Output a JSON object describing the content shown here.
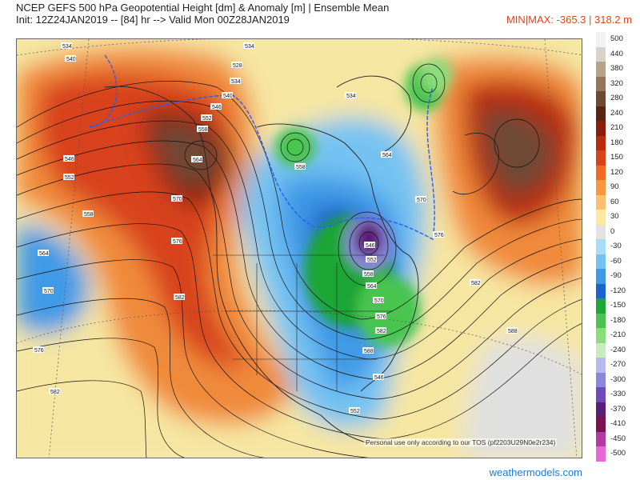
{
  "header": {
    "title": "NCEP GEFS 500 hPa Geopotential Height [dm] & Anomaly [m] | Ensemble Mean",
    "init": "Init: 12Z24JAN2019 -- [84] hr --> Valid Mon 00Z28JAN2019",
    "minmax": "MIN|MAX: -365.3 | 318.2 m"
  },
  "legend": {
    "entries": [
      {
        "label": "500",
        "color": "#f2f2f2"
      },
      {
        "label": "440",
        "color": "#d9d3c9"
      },
      {
        "label": "380",
        "color": "#b8a48c"
      },
      {
        "label": "320",
        "color": "#96765a"
      },
      {
        "label": "280",
        "color": "#6e4a36"
      },
      {
        "label": "240",
        "color": "#5a2414"
      },
      {
        "label": "210",
        "color": "#8a1d0b"
      },
      {
        "label": "180",
        "color": "#b92a0e"
      },
      {
        "label": "150",
        "color": "#d8431a"
      },
      {
        "label": "120",
        "color": "#ef6a26"
      },
      {
        "label": "90",
        "color": "#f79740"
      },
      {
        "label": "60",
        "color": "#fcc070"
      },
      {
        "label": "30",
        "color": "#fde8a0"
      },
      {
        "label": "0",
        "color": "#e3e3e3"
      },
      {
        "label": "-30",
        "color": "#a9dcf7"
      },
      {
        "label": "-60",
        "color": "#74c2f2"
      },
      {
        "label": "-90",
        "color": "#3f9ae6"
      },
      {
        "label": "-120",
        "color": "#1c63cf"
      },
      {
        "label": "-150",
        "color": "#1ea636"
      },
      {
        "label": "-180",
        "color": "#49c44f"
      },
      {
        "label": "-210",
        "color": "#8bdc7c"
      },
      {
        "label": "-240",
        "color": "#c8ecc0"
      },
      {
        "label": "-270",
        "color": "#b7b9f1"
      },
      {
        "label": "-300",
        "color": "#8e86dd"
      },
      {
        "label": "-330",
        "color": "#6a4cba"
      },
      {
        "label": "-370",
        "color": "#5a1f74"
      },
      {
        "label": "-410",
        "color": "#7a1250"
      },
      {
        "label": "-450",
        "color": "#b23aa0"
      },
      {
        "label": "-500",
        "color": "#e868d8"
      }
    ]
  },
  "contour_labels": [
    "534",
    "528",
    "534",
    "540",
    "546",
    "552",
    "558",
    "564",
    "570",
    "576",
    "582",
    "534",
    "540",
    "546",
    "552",
    "558",
    "564",
    "570",
    "576",
    "582",
    "534",
    "546",
    "552",
    "558",
    "564",
    "570",
    "576",
    "582",
    "588",
    "546",
    "552",
    "558",
    "564",
    "570",
    "576",
    "582",
    "588"
  ],
  "footer": {
    "tos": "Personal use only according to our TOS (pf2203U29N0e2r234)",
    "brand": "weathermodels.com"
  }
}
